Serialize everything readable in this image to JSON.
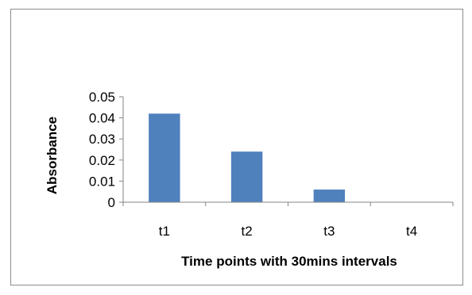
{
  "chart_data": {
    "type": "bar",
    "title": "",
    "xlabel": "Time points with 30mins intervals",
    "ylabel": "Absorbance",
    "categories": [
      "t1",
      "t2",
      "t3",
      "t4"
    ],
    "values": [
      0.042,
      0.024,
      0.006,
      0
    ],
    "ylim": [
      0,
      0.05
    ],
    "yticks": [
      0,
      0.01,
      0.02,
      0.03,
      0.04,
      0.05
    ],
    "ytick_labels": [
      "0",
      "0.01",
      "0.02",
      "0.03",
      "0.04",
      "0.05"
    ],
    "grid": false,
    "legend": "none",
    "bar_color": "#4f81bd"
  }
}
